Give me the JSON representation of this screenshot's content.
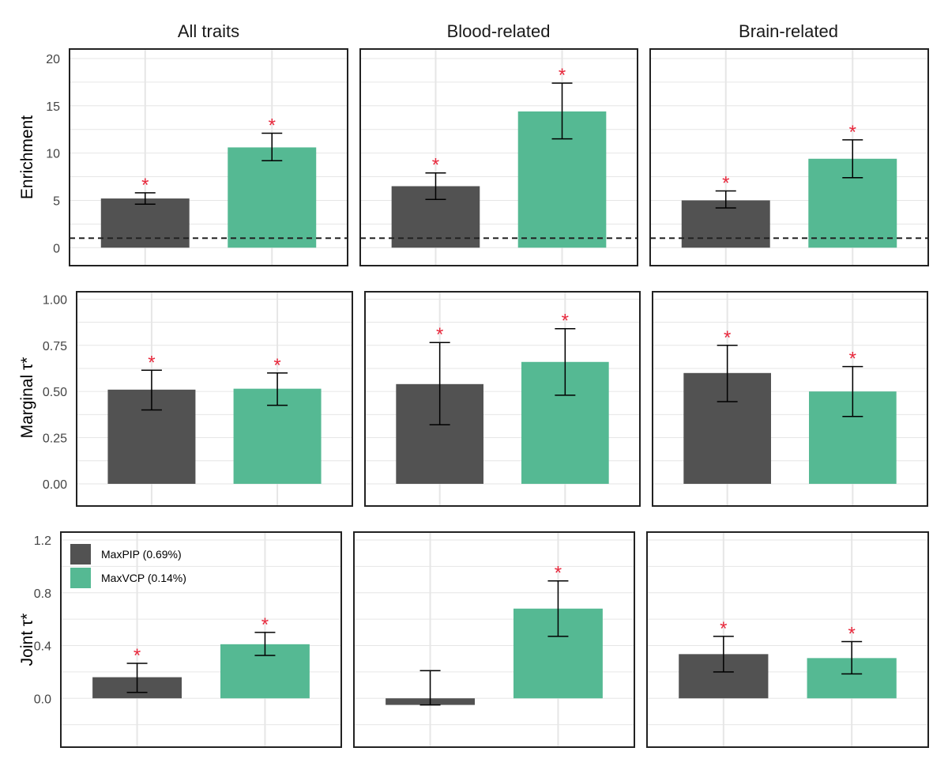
{
  "chart_data": {
    "type": "bar",
    "column_titles": [
      "All traits",
      "Blood-related",
      "Brain-related"
    ],
    "categories": [
      "MaxPIP (0.69%)",
      "MaxVCP (0.14%)"
    ],
    "colors": {
      "MaxPIP (0.69%)": "#525252",
      "MaxVCP (0.14%)": "#55b993",
      "significance": "#e8283c",
      "reference_line": "#222222",
      "grid": "#e6e6e6",
      "frame": "#222222"
    },
    "legend": {
      "entries": [
        "MaxPIP (0.69%)",
        "MaxVCP (0.14%)"
      ],
      "placement": "top-left of bottom-left panel"
    },
    "significance_marker": "*",
    "grid": true,
    "rows": [
      {
        "ylabel": "Enrichment",
        "ylim": [
          -1.9,
          21
        ],
        "yticks": [
          "0",
          "5",
          "10",
          "15",
          "20"
        ],
        "reference_line": 1,
        "panels": [
          {
            "title": "All traits",
            "bars": [
              {
                "category": "MaxPIP (0.69%)",
                "value": 5.2,
                "ci": [
                  4.6,
                  5.8
                ],
                "significant": true
              },
              {
                "category": "MaxVCP (0.14%)",
                "value": 10.6,
                "ci": [
                  9.2,
                  12.1
                ],
                "significant": true
              }
            ]
          },
          {
            "title": "Blood-related",
            "bars": [
              {
                "category": "MaxPIP (0.69%)",
                "value": 6.5,
                "ci": [
                  5.1,
                  7.9
                ],
                "significant": true
              },
              {
                "category": "MaxVCP (0.14%)",
                "value": 14.4,
                "ci": [
                  11.5,
                  17.4
                ],
                "significant": true
              }
            ]
          },
          {
            "title": "Brain-related",
            "bars": [
              {
                "category": "MaxPIP (0.69%)",
                "value": 5.0,
                "ci": [
                  4.2,
                  6.0
                ],
                "significant": true
              },
              {
                "category": "MaxVCP (0.14%)",
                "value": 9.4,
                "ci": [
                  7.4,
                  11.4
                ],
                "significant": true
              }
            ]
          }
        ]
      },
      {
        "ylabel": "Marginal τ*",
        "ylim": [
          -0.12,
          1.04
        ],
        "yticks": [
          "0.00",
          "0.25",
          "0.50",
          "0.75",
          "1.00"
        ],
        "panels": [
          {
            "title": "All traits",
            "bars": [
              {
                "category": "MaxPIP (0.69%)",
                "value": 0.51,
                "ci": [
                  0.4,
                  0.615
                ],
                "significant": true
              },
              {
                "category": "MaxVCP (0.14%)",
                "value": 0.515,
                "ci": [
                  0.425,
                  0.6
                ],
                "significant": true
              }
            ]
          },
          {
            "title": "Blood-related",
            "bars": [
              {
                "category": "MaxPIP (0.69%)",
                "value": 0.54,
                "ci": [
                  0.32,
                  0.765
                ],
                "significant": true
              },
              {
                "category": "MaxVCP (0.14%)",
                "value": 0.66,
                "ci": [
                  0.48,
                  0.84
                ],
                "significant": true
              }
            ]
          },
          {
            "title": "Brain-related",
            "bars": [
              {
                "category": "MaxPIP (0.69%)",
                "value": 0.6,
                "ci": [
                  0.445,
                  0.75
                ],
                "significant": true
              },
              {
                "category": "MaxVCP (0.14%)",
                "value": 0.5,
                "ci": [
                  0.365,
                  0.635
                ],
                "significant": true
              }
            ]
          }
        ]
      },
      {
        "ylabel": "Joint τ*",
        "ylim": [
          -0.37,
          1.26
        ],
        "yticks": [
          "0.0",
          "0.4",
          "0.8",
          "1.2"
        ],
        "panels": [
          {
            "title": "All traits",
            "bars": [
              {
                "category": "MaxPIP (0.69%)",
                "value": 0.16,
                "ci": [
                  0.045,
                  0.265
                ],
                "significant": true
              },
              {
                "category": "MaxVCP (0.14%)",
                "value": 0.41,
                "ci": [
                  0.325,
                  0.5
                ],
                "significant": true
              }
            ]
          },
          {
            "title": "Blood-related",
            "bars": [
              {
                "category": "MaxPIP (0.69%)",
                "value": -0.05,
                "ci": [
                  -0.05,
                  0.21
                ],
                "significant": false
              },
              {
                "category": "MaxVCP (0.14%)",
                "value": 0.68,
                "ci": [
                  0.47,
                  0.89
                ],
                "significant": true
              }
            ]
          },
          {
            "title": "Brain-related",
            "bars": [
              {
                "category": "MaxPIP (0.69%)",
                "value": 0.335,
                "ci": [
                  0.2,
                  0.47
                ],
                "significant": true
              },
              {
                "category": "MaxVCP (0.14%)",
                "value": 0.305,
                "ci": [
                  0.185,
                  0.43
                ],
                "significant": true
              }
            ]
          }
        ]
      }
    ]
  }
}
